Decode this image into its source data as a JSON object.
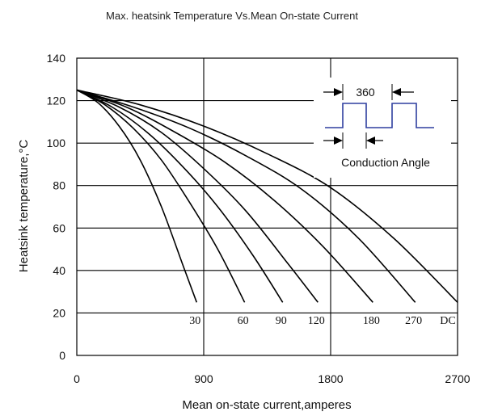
{
  "chart_data": {
    "type": "line",
    "title": "Max. heatsink Temperature Vs.Mean On-state Current",
    "xlabel": "Mean on-state current,amperes",
    "ylabel": "Heatsink temperature,°C",
    "xlim": [
      0,
      2700
    ],
    "ylim": [
      0,
      140
    ],
    "xticks": [
      0,
      900,
      1800,
      2700
    ],
    "yticks": [
      0,
      20,
      40,
      60,
      80,
      100,
      120,
      140
    ],
    "x_gridlines": [
      900,
      1800
    ],
    "y_gridlines": [
      20,
      40,
      60,
      80,
      100,
      120
    ],
    "grid": true,
    "series": [
      {
        "name": "30",
        "x": [
          0,
          150,
          300,
          450,
          600,
          750,
          850
        ],
        "y": [
          125,
          119,
          108,
          92,
          70,
          43,
          25
        ]
      },
      {
        "name": "60",
        "x": [
          0,
          200,
          400,
          600,
          800,
          1000,
          1190
        ],
        "y": [
          125,
          118,
          107,
          92,
          72,
          50,
          25
        ]
      },
      {
        "name": "90",
        "x": [
          0,
          250,
          500,
          750,
          1000,
          1250,
          1460
        ],
        "y": [
          125,
          117,
          105,
          89,
          70,
          47,
          25
        ]
      },
      {
        "name": "120",
        "x": [
          0,
          300,
          600,
          900,
          1200,
          1500,
          1710
        ],
        "y": [
          125,
          117,
          105,
          88,
          68,
          43,
          25
        ]
      },
      {
        "name": "180",
        "x": [
          0,
          350,
          700,
          1050,
          1400,
          1750,
          2100
        ],
        "y": [
          125,
          117,
          105,
          91,
          73,
          51,
          25
        ]
      },
      {
        "name": "270",
        "x": [
          0,
          400,
          800,
          1200,
          1600,
          2000,
          2400
        ],
        "y": [
          125,
          117,
          107,
          94,
          78,
          55,
          25
        ]
      },
      {
        "name": "DC",
        "x": [
          0,
          450,
          900,
          1350,
          1800,
          2250,
          2700
        ],
        "y": [
          125,
          118,
          108,
          95,
          79,
          55,
          25
        ]
      }
    ],
    "inset": {
      "period_label": "360",
      "caption": "Conduction Angle",
      "waveform_color": "#2f3f9f"
    }
  }
}
